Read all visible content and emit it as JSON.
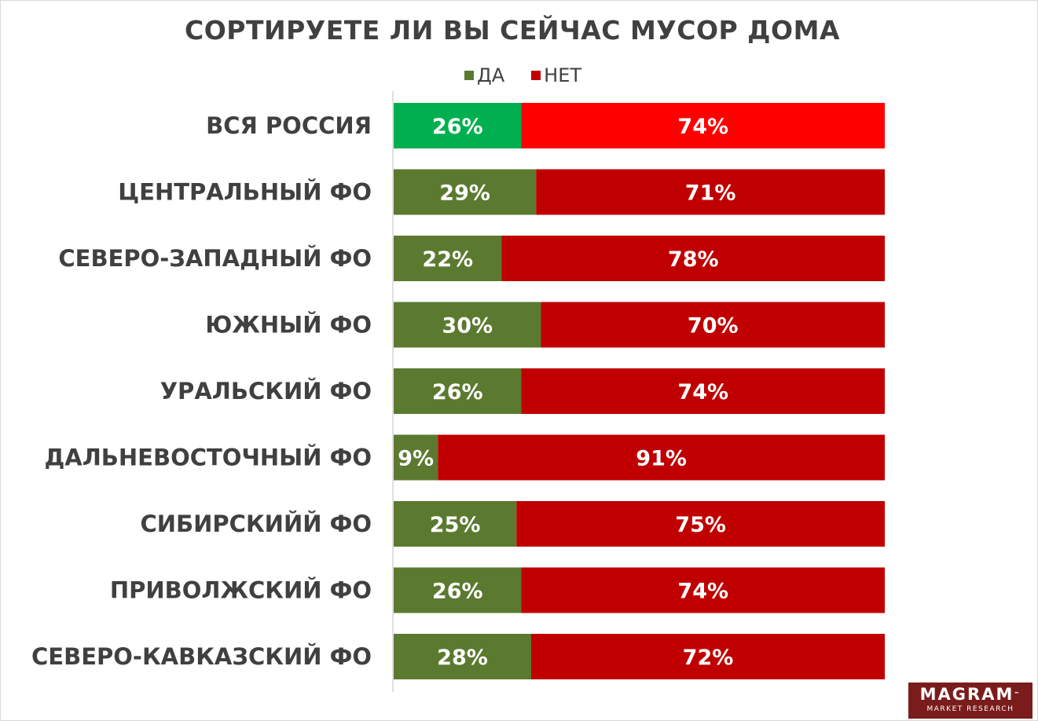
{
  "chart_data": {
    "type": "bar",
    "orientation": "horizontal",
    "stacked": true,
    "title": "СОРТИРУЕТЕ ЛИ ВЫ СЕЙЧАС МУСОР ДОМА",
    "legend_position": "top",
    "categories": [
      "ВСЯ РОССИЯ",
      "ЦЕНТРАЛЬНЫЙ ФО",
      "СЕВЕРО-ЗАПАДНЫЙ ФО",
      "ЮЖНЫЙ ФО",
      "УРАЛЬСКИЙ ФО",
      "ДАЛЬНЕВОСТОЧНЫЙ ФО",
      "СИБИРСКИЙЙ ФО",
      "ПРИВОЛЖСКИЙ ФО",
      "СЕВЕРО-КАВКАЗСКИЙ ФО"
    ],
    "series": [
      {
        "name": "ДА",
        "color": "#5b7a30",
        "highlight_color": "#00b050",
        "values": [
          26,
          29,
          22,
          30,
          26,
          9,
          25,
          26,
          28
        ]
      },
      {
        "name": "НЕТ",
        "color": "#c00000",
        "highlight_color": "#ff0000",
        "values": [
          74,
          71,
          78,
          70,
          74,
          91,
          75,
          74,
          72
        ]
      }
    ],
    "value_format": "{v}%",
    "highlighted_category_index": 0,
    "xlim": [
      0,
      100
    ],
    "grid": false
  },
  "legend": {
    "items": [
      {
        "label": "ДА",
        "color": "#5b7a30"
      },
      {
        "label": "НЕТ",
        "color": "#c00000"
      }
    ]
  },
  "logo": {
    "name": "MAGRAM",
    "tm": "™",
    "sub": "MARKET RESEARCH"
  }
}
